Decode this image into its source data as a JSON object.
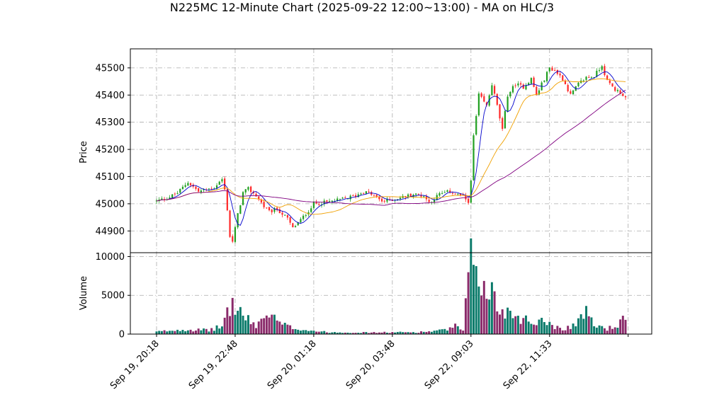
{
  "chart_data": {
    "type": "candlestick",
    "title": "N225MC 12-Minute Chart (2025-09-22 12:00~13:00) - MA on HLC/3",
    "price_panel": {
      "ylabel": "Price",
      "ylim": [
        44820,
        45570
      ],
      "yticks": [
        44900,
        45000,
        45100,
        45200,
        45300,
        45400,
        45500
      ],
      "ytick_labels": [
        "44900",
        "45000",
        "45100",
        "45200",
        "45300",
        "45400",
        "45500"
      ],
      "grid": true
    },
    "volume_panel": {
      "ylabel": "Volume",
      "ylim": [
        0,
        10500
      ],
      "yticks": [
        0,
        5000,
        10000
      ],
      "ytick_labels": [
        "0",
        "5000",
        "10000"
      ],
      "grid": true
    },
    "x_axis": {
      "bar_count": 180,
      "xlim": [
        -10,
        189
      ],
      "tick_positions": [
        0,
        30,
        60,
        90,
        120,
        150,
        180
      ],
      "tick_labels": [
        "Sep 19, 20:18",
        "Sep 19, 22:48",
        "Sep 20, 01:18",
        "Sep 20, 03:48",
        "Sep 22, 09:03",
        "Sep 22, 11:33",
        ""
      ]
    },
    "close_anchors": [
      [
        0,
        45010
      ],
      [
        5,
        45025
      ],
      [
        8,
        45040
      ],
      [
        12,
        45080
      ],
      [
        16,
        45045
      ],
      [
        22,
        45060
      ],
      [
        25,
        45090
      ],
      [
        26,
        45050
      ],
      [
        27,
        44980
      ],
      [
        28,
        44880
      ],
      [
        29,
        44860
      ],
      [
        31,
        44960
      ],
      [
        33,
        45040
      ],
      [
        35,
        45055
      ],
      [
        38,
        45030
      ],
      [
        41,
        44990
      ],
      [
        43,
        44970
      ],
      [
        46,
        44980
      ],
      [
        50,
        44945
      ],
      [
        52,
        44910
      ],
      [
        55,
        44940
      ],
      [
        58,
        44975
      ],
      [
        60,
        45000
      ],
      [
        64,
        45005
      ],
      [
        68,
        45010
      ],
      [
        72,
        45020
      ],
      [
        76,
        45030
      ],
      [
        79,
        45045
      ],
      [
        82,
        45035
      ],
      [
        86,
        45010
      ],
      [
        90,
        45015
      ],
      [
        94,
        45025
      ],
      [
        98,
        45035
      ],
      [
        102,
        45030
      ],
      [
        104,
        45005
      ],
      [
        108,
        45035
      ],
      [
        112,
        45045
      ],
      [
        116,
        45030
      ],
      [
        119,
        45010
      ],
      [
        120,
        45080
      ],
      [
        121,
        45250
      ],
      [
        122,
        45320
      ],
      [
        123,
        45400
      ],
      [
        126,
        45360
      ],
      [
        128,
        45440
      ],
      [
        130,
        45360
      ],
      [
        132,
        45270
      ],
      [
        134,
        45400
      ],
      [
        137,
        45440
      ],
      [
        140,
        45430
      ],
      [
        143,
        45460
      ],
      [
        145,
        45400
      ],
      [
        148,
        45460
      ],
      [
        150,
        45500
      ],
      [
        152,
        45490
      ],
      [
        155,
        45460
      ],
      [
        158,
        45400
      ],
      [
        161,
        45440
      ],
      [
        164,
        45465
      ],
      [
        167,
        45470
      ],
      [
        170,
        45510
      ],
      [
        172,
        45450
      ],
      [
        175,
        45420
      ],
      [
        177,
        45410
      ],
      [
        179,
        45390
      ],
      [
        180,
        45360
      ]
    ],
    "volume_anchors": [
      [
        0,
        300
      ],
      [
        10,
        600
      ],
      [
        20,
        500
      ],
      [
        25,
        1000
      ],
      [
        27,
        3000
      ],
      [
        29,
        3700
      ],
      [
        31,
        3300
      ],
      [
        34,
        2000
      ],
      [
        38,
        1100
      ],
      [
        42,
        2600
      ],
      [
        48,
        1200
      ],
      [
        52,
        800
      ],
      [
        58,
        500
      ],
      [
        65,
        250
      ],
      [
        80,
        200
      ],
      [
        100,
        250
      ],
      [
        110,
        500
      ],
      [
        114,
        1000
      ],
      [
        117,
        400
      ],
      [
        119,
        6500
      ],
      [
        120,
        9000
      ],
      [
        121,
        10200
      ],
      [
        123,
        8400
      ],
      [
        126,
        4200
      ],
      [
        128,
        5800
      ],
      [
        130,
        3300
      ],
      [
        135,
        2800
      ],
      [
        140,
        2000
      ],
      [
        145,
        1400
      ],
      [
        148,
        2400
      ],
      [
        150,
        1200
      ],
      [
        155,
        700
      ],
      [
        160,
        1200
      ],
      [
        163,
        3100
      ],
      [
        167,
        1200
      ],
      [
        172,
        700
      ],
      [
        176,
        1100
      ],
      [
        178,
        1800
      ],
      [
        180,
        1200
      ]
    ],
    "series": [
      {
        "window": 5,
        "color": "#0000cc"
      },
      {
        "window": 20,
        "color": "#f0a000"
      },
      {
        "window": 60,
        "color": "#800080"
      }
    ],
    "colors": {
      "up": "#22a022",
      "down": "#ff2a2a",
      "volume_up": "#0a7a6a",
      "volume_down": "#8a2a6a",
      "grid": "#aaaaaa"
    }
  }
}
